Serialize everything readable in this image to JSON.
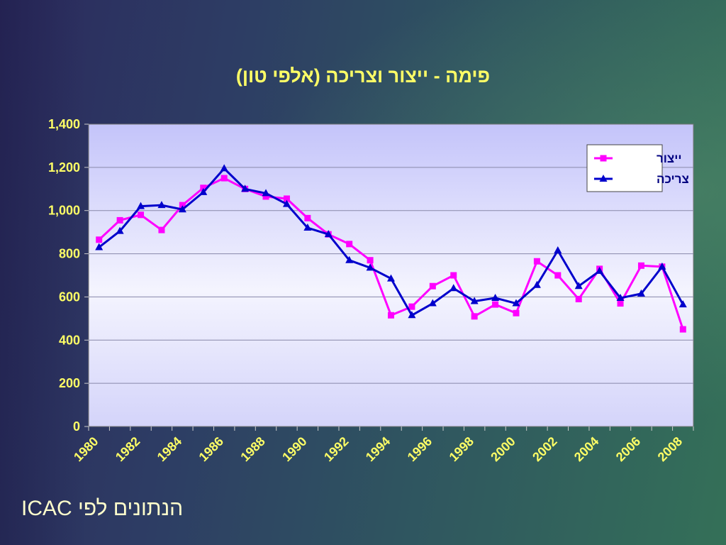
{
  "slide": {
    "title": "פימה - ייצור  וצריכה (אלפי טון)",
    "source_note": "הנתונים לפי ICAC"
  },
  "chart_data": {
    "type": "line",
    "title": "פימה - ייצור  וצריכה (אלפי טון)",
    "x": [
      1980,
      1981,
      1982,
      1983,
      1984,
      1985,
      1986,
      1987,
      1988,
      1989,
      1990,
      1991,
      1992,
      1993,
      1994,
      1995,
      1996,
      1997,
      1998,
      1999,
      2000,
      2001,
      2002,
      2003,
      2004,
      2005,
      2006,
      2007,
      2008
    ],
    "x_tick_labels": [
      "1980",
      "1982",
      "1984",
      "1986",
      "1988",
      "1990",
      "1992",
      "1994",
      "1996",
      "1998",
      "2000",
      "2002",
      "2004",
      "2006",
      "2008"
    ],
    "y_tick_labels": [
      "0",
      "200",
      "400",
      "600",
      "800",
      "1,000",
      "1,200",
      "1,400"
    ],
    "ylim": [
      0,
      1400
    ],
    "y_step": 200,
    "grid": true,
    "legend_position": "top-right",
    "series": [
      {
        "name": "ייצור",
        "color": "#ff00ff",
        "marker": "square",
        "values": [
          865,
          955,
          980,
          910,
          1025,
          1105,
          1150,
          1100,
          1065,
          1055,
          965,
          890,
          845,
          770,
          515,
          555,
          650,
          700,
          510,
          565,
          525,
          765,
          700,
          590,
          730,
          570,
          745,
          740,
          450
        ]
      },
      {
        "name": "צריכה",
        "color": "#0000cc",
        "marker": "triangle",
        "values": [
          830,
          905,
          1020,
          1025,
          1005,
          1085,
          1195,
          1100,
          1080,
          1030,
          920,
          890,
          770,
          735,
          685,
          515,
          570,
          640,
          580,
          595,
          570,
          655,
          815,
          650,
          720,
          595,
          615,
          740,
          565
        ]
      }
    ],
    "plot_background": "#c8c8f8",
    "text_color": "#ffff66"
  }
}
